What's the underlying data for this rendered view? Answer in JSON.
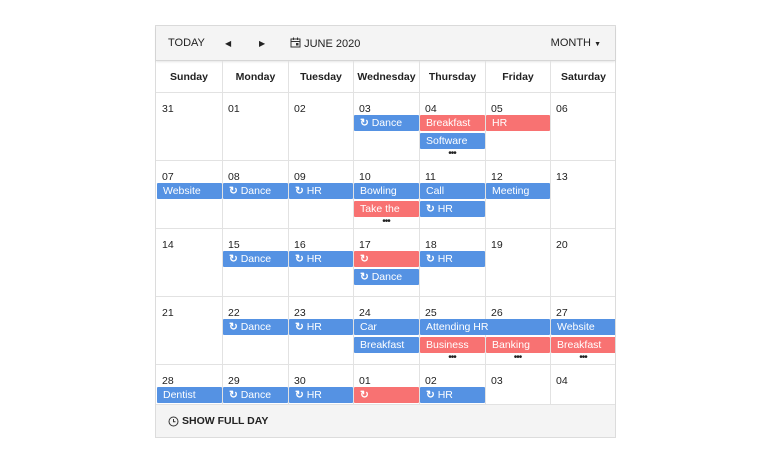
{
  "toolbar": {
    "today": "TODAY",
    "prev_icon": "caret-left-icon",
    "next_icon": "caret-right-icon",
    "calendar_icon": "calendar-icon",
    "month_label": "JUNE 2020",
    "view": "MONTH"
  },
  "weekdays": [
    "Sunday",
    "Monday",
    "Tuesday",
    "Wednesday",
    "Thursday",
    "Friday",
    "Saturday"
  ],
  "weeks": [
    [
      "31",
      "01",
      "02",
      "03",
      "04",
      "05",
      "06"
    ],
    [
      "07",
      "08",
      "09",
      "10",
      "11",
      "12",
      "13"
    ],
    [
      "14",
      "15",
      "16",
      "17",
      "18",
      "19",
      "20"
    ],
    [
      "21",
      "22",
      "23",
      "24",
      "25",
      "26",
      "27"
    ],
    [
      "28",
      "29",
      "30",
      "01",
      "02",
      "03",
      "04"
    ]
  ],
  "colors": {
    "blue": "#5592e3",
    "red": "#f87272"
  },
  "events": [
    {
      "w": 0,
      "d": 3,
      "span": 1,
      "slot": 0,
      "title": "Dance",
      "color": "blue",
      "recurring": true
    },
    {
      "w": 0,
      "d": 4,
      "span": 1,
      "slot": 0,
      "title": "Breakfast",
      "color": "red",
      "recurring": false
    },
    {
      "w": 0,
      "d": 5,
      "span": 1,
      "slot": 0,
      "title": "HR",
      "color": "red",
      "recurring": false
    },
    {
      "w": 0,
      "d": 4,
      "span": 1,
      "slot": 1,
      "title": "Software",
      "color": "blue",
      "recurring": false
    },
    {
      "w": 1,
      "d": 0,
      "span": 1,
      "slot": 0,
      "title": "Website",
      "color": "blue",
      "recurring": false
    },
    {
      "w": 1,
      "d": 1,
      "span": 1,
      "slot": 0,
      "title": "Dance",
      "color": "blue",
      "recurring": true
    },
    {
      "w": 1,
      "d": 2,
      "span": 1,
      "slot": 0,
      "title": "HR",
      "color": "blue",
      "recurring": true
    },
    {
      "w": 1,
      "d": 3,
      "span": 1,
      "slot": 0,
      "title": "Bowling",
      "color": "blue",
      "recurring": false
    },
    {
      "w": 1,
      "d": 4,
      "span": 1,
      "slot": 0,
      "title": "Call",
      "color": "blue",
      "recurring": false
    },
    {
      "w": 1,
      "d": 5,
      "span": 1,
      "slot": 0,
      "title": "Meeting",
      "color": "blue",
      "recurring": false
    },
    {
      "w": 1,
      "d": 3,
      "span": 1,
      "slot": 1,
      "title": "Take the",
      "color": "red",
      "recurring": false
    },
    {
      "w": 1,
      "d": 4,
      "span": 1,
      "slot": 1,
      "title": "HR",
      "color": "blue",
      "recurring": true
    },
    {
      "w": 2,
      "d": 1,
      "span": 1,
      "slot": 0,
      "title": "Dance",
      "color": "blue",
      "recurring": true
    },
    {
      "w": 2,
      "d": 2,
      "span": 1,
      "slot": 0,
      "title": "HR",
      "color": "blue",
      "recurring": true
    },
    {
      "w": 2,
      "d": 3,
      "span": 1,
      "slot": 0,
      "title": "",
      "color": "red",
      "recurring": true
    },
    {
      "w": 2,
      "d": 4,
      "span": 1,
      "slot": 0,
      "title": "HR",
      "color": "blue",
      "recurring": true
    },
    {
      "w": 2,
      "d": 3,
      "span": 1,
      "slot": 1,
      "title": "Dance",
      "color": "blue",
      "recurring": true
    },
    {
      "w": 3,
      "d": 1,
      "span": 1,
      "slot": 0,
      "title": "Dance",
      "color": "blue",
      "recurring": true
    },
    {
      "w": 3,
      "d": 2,
      "span": 1,
      "slot": 0,
      "title": "HR",
      "color": "blue",
      "recurring": true
    },
    {
      "w": 3,
      "d": 3,
      "span": 1,
      "slot": 0,
      "title": "Car",
      "color": "blue",
      "recurring": false
    },
    {
      "w": 3,
      "d": 4,
      "span": 2,
      "slot": 0,
      "title": "Attending HR",
      "color": "blue",
      "recurring": false
    },
    {
      "w": 3,
      "d": 6,
      "span": 1,
      "slot": 0,
      "title": "Website",
      "color": "blue",
      "recurring": false
    },
    {
      "w": 3,
      "d": 3,
      "span": 1,
      "slot": 1,
      "title": "Breakfast",
      "color": "blue",
      "recurring": false
    },
    {
      "w": 3,
      "d": 4,
      "span": 1,
      "slot": 1,
      "title": "Business",
      "color": "red",
      "recurring": false
    },
    {
      "w": 3,
      "d": 5,
      "span": 1,
      "slot": 1,
      "title": "Banking",
      "color": "red",
      "recurring": false
    },
    {
      "w": 3,
      "d": 6,
      "span": 1,
      "slot": 1,
      "title": "Breakfast",
      "color": "red",
      "recurring": false
    },
    {
      "w": 4,
      "d": 0,
      "span": 1,
      "slot": 0,
      "title": "Dentist",
      "color": "blue",
      "recurring": false
    },
    {
      "w": 4,
      "d": 1,
      "span": 1,
      "slot": 0,
      "title": "Dance",
      "color": "blue",
      "recurring": true
    },
    {
      "w": 4,
      "d": 2,
      "span": 1,
      "slot": 0,
      "title": "HR",
      "color": "blue",
      "recurring": true
    },
    {
      "w": 4,
      "d": 3,
      "span": 1,
      "slot": 0,
      "title": "",
      "color": "red",
      "recurring": true
    },
    {
      "w": 4,
      "d": 4,
      "span": 1,
      "slot": 0,
      "title": "HR",
      "color": "blue",
      "recurring": true
    }
  ],
  "more": [
    {
      "w": 0,
      "d": 4,
      "label": "•••"
    },
    {
      "w": 1,
      "d": 3,
      "label": "•••"
    },
    {
      "w": 3,
      "d": 4,
      "label": "•••"
    },
    {
      "w": 3,
      "d": 5,
      "label": "•••"
    },
    {
      "w": 3,
      "d": 6,
      "label": "•••"
    }
  ],
  "footer": {
    "icon": "clock-icon",
    "label": "SHOW FULL DAY"
  }
}
